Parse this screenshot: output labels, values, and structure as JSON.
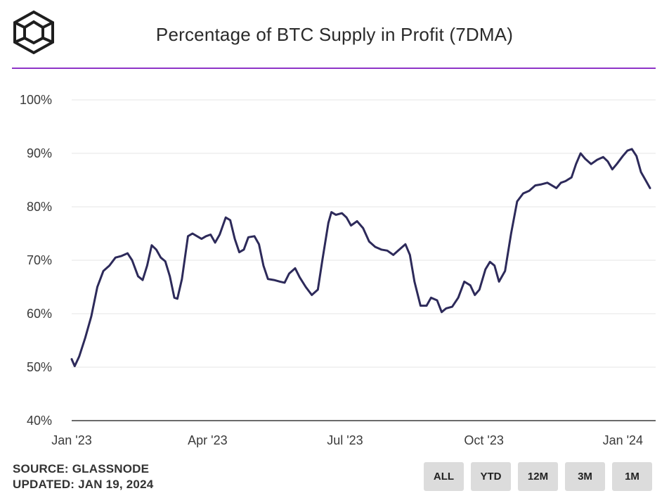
{
  "header": {
    "title": "Percentage of BTC Supply in Profit (7DMA)",
    "logo_icon": "cube-logo-icon"
  },
  "footer": {
    "source": "SOURCE: GLASSNODE",
    "updated": "UPDATED: JAN 19, 2024"
  },
  "range_buttons": [
    "ALL",
    "YTD",
    "12M",
    "3M",
    "1M"
  ],
  "colors": {
    "line": "#2d2a5a",
    "accent_rule": "#8e33c7",
    "gridline": "#e6e6e6",
    "button_bg": "#dcdcdc"
  },
  "chart_data": {
    "type": "line",
    "title": "Percentage of BTC Supply in Profit (7DMA)",
    "xlabel": "",
    "ylabel": "",
    "ylim": [
      40,
      100
    ],
    "y_ticks": [
      "40%",
      "50%",
      "60%",
      "70%",
      "80%",
      "90%",
      "100%"
    ],
    "x_ticks": [
      "Jan '23",
      "Apr '23",
      "Jul '23",
      "Oct '23",
      "Jan '24"
    ],
    "x_range": [
      "2023-01-01",
      "2024-01-19"
    ],
    "grid": true,
    "series": [
      {
        "values": [
          [
            "2023-01-01",
            51.5
          ],
          [
            "2023-01-03",
            50.2
          ],
          [
            "2023-01-06",
            52.0
          ],
          [
            "2023-01-10",
            55.5
          ],
          [
            "2023-01-14",
            59.5
          ],
          [
            "2023-01-18",
            65.0
          ],
          [
            "2023-01-22",
            68.0
          ],
          [
            "2023-01-26",
            69.0
          ],
          [
            "2023-01-30",
            70.5
          ],
          [
            "2023-02-03",
            70.8
          ],
          [
            "2023-02-07",
            71.3
          ],
          [
            "2023-02-10",
            70.0
          ],
          [
            "2023-02-14",
            67.0
          ],
          [
            "2023-02-17",
            66.3
          ],
          [
            "2023-02-20",
            69.0
          ],
          [
            "2023-02-23",
            72.8
          ],
          [
            "2023-02-26",
            72.0
          ],
          [
            "2023-03-01",
            70.5
          ],
          [
            "2023-03-04",
            69.8
          ],
          [
            "2023-03-07",
            67.0
          ],
          [
            "2023-03-10",
            63.0
          ],
          [
            "2023-03-12",
            62.8
          ],
          [
            "2023-03-15",
            66.5
          ],
          [
            "2023-03-19",
            74.5
          ],
          [
            "2023-03-22",
            75.0
          ],
          [
            "2023-03-25",
            74.5
          ],
          [
            "2023-03-28",
            74.0
          ],
          [
            "2023-03-31",
            74.5
          ],
          [
            "2023-04-03",
            74.8
          ],
          [
            "2023-04-06",
            73.3
          ],
          [
            "2023-04-09",
            74.8
          ],
          [
            "2023-04-13",
            78.0
          ],
          [
            "2023-04-16",
            77.5
          ],
          [
            "2023-04-19",
            74.0
          ],
          [
            "2023-04-22",
            71.5
          ],
          [
            "2023-04-25",
            72.0
          ],
          [
            "2023-04-28",
            74.3
          ],
          [
            "2023-05-02",
            74.5
          ],
          [
            "2023-05-05",
            73.0
          ],
          [
            "2023-05-08",
            69.0
          ],
          [
            "2023-05-11",
            66.5
          ],
          [
            "2023-05-15",
            66.3
          ],
          [
            "2023-05-19",
            66.0
          ],
          [
            "2023-05-22",
            65.8
          ],
          [
            "2023-05-25",
            67.5
          ],
          [
            "2023-05-29",
            68.5
          ],
          [
            "2023-06-01",
            66.8
          ],
          [
            "2023-06-05",
            65.0
          ],
          [
            "2023-06-09",
            63.5
          ],
          [
            "2023-06-13",
            64.5
          ],
          [
            "2023-06-16",
            70.0
          ],
          [
            "2023-06-20",
            77.0
          ],
          [
            "2023-06-22",
            79.0
          ],
          [
            "2023-06-25",
            78.5
          ],
          [
            "2023-06-29",
            78.8
          ],
          [
            "2023-07-02",
            78.0
          ],
          [
            "2023-07-05",
            76.5
          ],
          [
            "2023-07-09",
            77.3
          ],
          [
            "2023-07-13",
            76.0
          ],
          [
            "2023-07-17",
            73.5
          ],
          [
            "2023-07-21",
            72.5
          ],
          [
            "2023-07-25",
            72.0
          ],
          [
            "2023-07-29",
            71.8
          ],
          [
            "2023-08-02",
            71.0
          ],
          [
            "2023-08-06",
            72.0
          ],
          [
            "2023-08-10",
            73.0
          ],
          [
            "2023-08-13",
            71.0
          ],
          [
            "2023-08-16",
            66.0
          ],
          [
            "2023-08-20",
            61.5
          ],
          [
            "2023-08-24",
            61.5
          ],
          [
            "2023-08-27",
            63.0
          ],
          [
            "2023-08-31",
            62.5
          ],
          [
            "2023-09-03",
            60.3
          ],
          [
            "2023-09-06",
            61.0
          ],
          [
            "2023-09-10",
            61.3
          ],
          [
            "2023-09-14",
            63.0
          ],
          [
            "2023-09-18",
            66.0
          ],
          [
            "2023-09-22",
            65.3
          ],
          [
            "2023-09-25",
            63.5
          ],
          [
            "2023-09-28",
            64.5
          ],
          [
            "2023-10-02",
            68.3
          ],
          [
            "2023-10-05",
            69.7
          ],
          [
            "2023-10-08",
            69.0
          ],
          [
            "2023-10-11",
            66.0
          ],
          [
            "2023-10-15",
            68.0
          ],
          [
            "2023-10-19",
            75.0
          ],
          [
            "2023-10-23",
            81.0
          ],
          [
            "2023-10-27",
            82.5
          ],
          [
            "2023-10-31",
            83.0
          ],
          [
            "2023-11-04",
            84.0
          ],
          [
            "2023-11-08",
            84.2
          ],
          [
            "2023-11-12",
            84.5
          ],
          [
            "2023-11-15",
            84.0
          ],
          [
            "2023-11-18",
            83.5
          ],
          [
            "2023-11-21",
            84.5
          ],
          [
            "2023-11-24",
            84.8
          ],
          [
            "2023-11-28",
            85.5
          ],
          [
            "2023-12-01",
            88.0
          ],
          [
            "2023-12-04",
            90.0
          ],
          [
            "2023-12-07",
            89.0
          ],
          [
            "2023-12-11",
            88.0
          ],
          [
            "2023-12-15",
            88.8
          ],
          [
            "2023-12-19",
            89.3
          ],
          [
            "2023-12-22",
            88.5
          ],
          [
            "2023-12-25",
            87.0
          ],
          [
            "2023-12-28",
            88.0
          ],
          [
            "2024-01-01",
            89.5
          ],
          [
            "2024-01-04",
            90.5
          ],
          [
            "2024-01-07",
            90.8
          ],
          [
            "2024-01-10",
            89.5
          ],
          [
            "2024-01-13",
            86.5
          ],
          [
            "2024-01-16",
            85.0
          ],
          [
            "2024-01-19",
            83.5
          ]
        ]
      }
    ]
  }
}
